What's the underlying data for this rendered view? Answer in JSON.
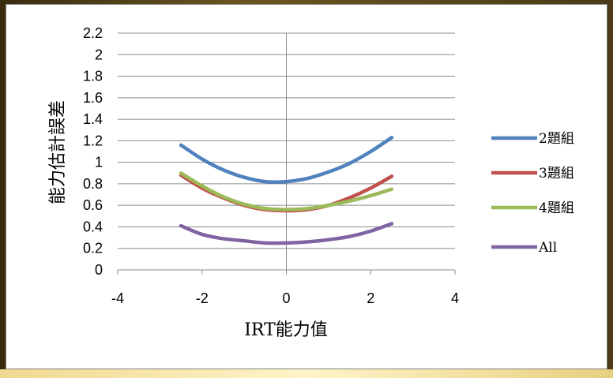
{
  "chart_data": {
    "type": "line",
    "title": "",
    "xlabel": "IRT能力值",
    "ylabel": "能力估計誤差",
    "xlim": [
      -4,
      4
    ],
    "ylim": [
      0,
      2.2
    ],
    "xticks": [
      -4,
      -2,
      0,
      2,
      4
    ],
    "yticks": [
      0,
      0.2,
      0.4,
      0.6,
      0.8,
      1,
      1.2,
      1.4,
      1.6,
      1.8,
      2,
      2.2
    ],
    "xtick_labels": [
      "-4",
      "-2",
      "0",
      "2",
      "4"
    ],
    "ytick_labels": [
      "0",
      "0.2",
      "0.4",
      "0.6",
      "0.8",
      "1",
      "1.2",
      "1.4",
      "1.6",
      "1.8",
      "2",
      "2.2"
    ],
    "grid": "horizontal",
    "legend": "right",
    "series": [
      {
        "name": "2題組",
        "color": "#4F81BD",
        "x": [
          -2.5,
          -2.0,
          -1.5,
          -1.0,
          -0.5,
          0.0,
          0.5,
          1.0,
          1.5,
          2.0,
          2.5
        ],
        "y": [
          1.16,
          1.03,
          0.93,
          0.86,
          0.82,
          0.82,
          0.85,
          0.91,
          0.99,
          1.1,
          1.23
        ]
      },
      {
        "name": "3題組",
        "color": "#C0504D",
        "x": [
          -2.5,
          -2.0,
          -1.5,
          -1.0,
          -0.5,
          0.0,
          0.5,
          1.0,
          1.5,
          2.0,
          2.5
        ],
        "y": [
          0.88,
          0.76,
          0.67,
          0.6,
          0.56,
          0.55,
          0.56,
          0.6,
          0.67,
          0.76,
          0.87
        ]
      },
      {
        "name": "4題組",
        "color": "#9BBB59",
        "x": [
          -2.5,
          -2.0,
          -1.5,
          -1.0,
          -0.5,
          0.0,
          0.5,
          1.0,
          1.5,
          2.0,
          2.5
        ],
        "y": [
          0.9,
          0.78,
          0.68,
          0.61,
          0.57,
          0.56,
          0.57,
          0.6,
          0.64,
          0.69,
          0.75
        ]
      },
      {
        "name": "All",
        "color": "#8064A2",
        "x": [
          -2.5,
          -2.0,
          -1.5,
          -1.0,
          -0.5,
          0.0,
          0.5,
          1.0,
          1.5,
          2.0,
          2.5
        ],
        "y": [
          0.41,
          0.33,
          0.29,
          0.27,
          0.25,
          0.25,
          0.26,
          0.28,
          0.31,
          0.36,
          0.43
        ]
      }
    ]
  }
}
